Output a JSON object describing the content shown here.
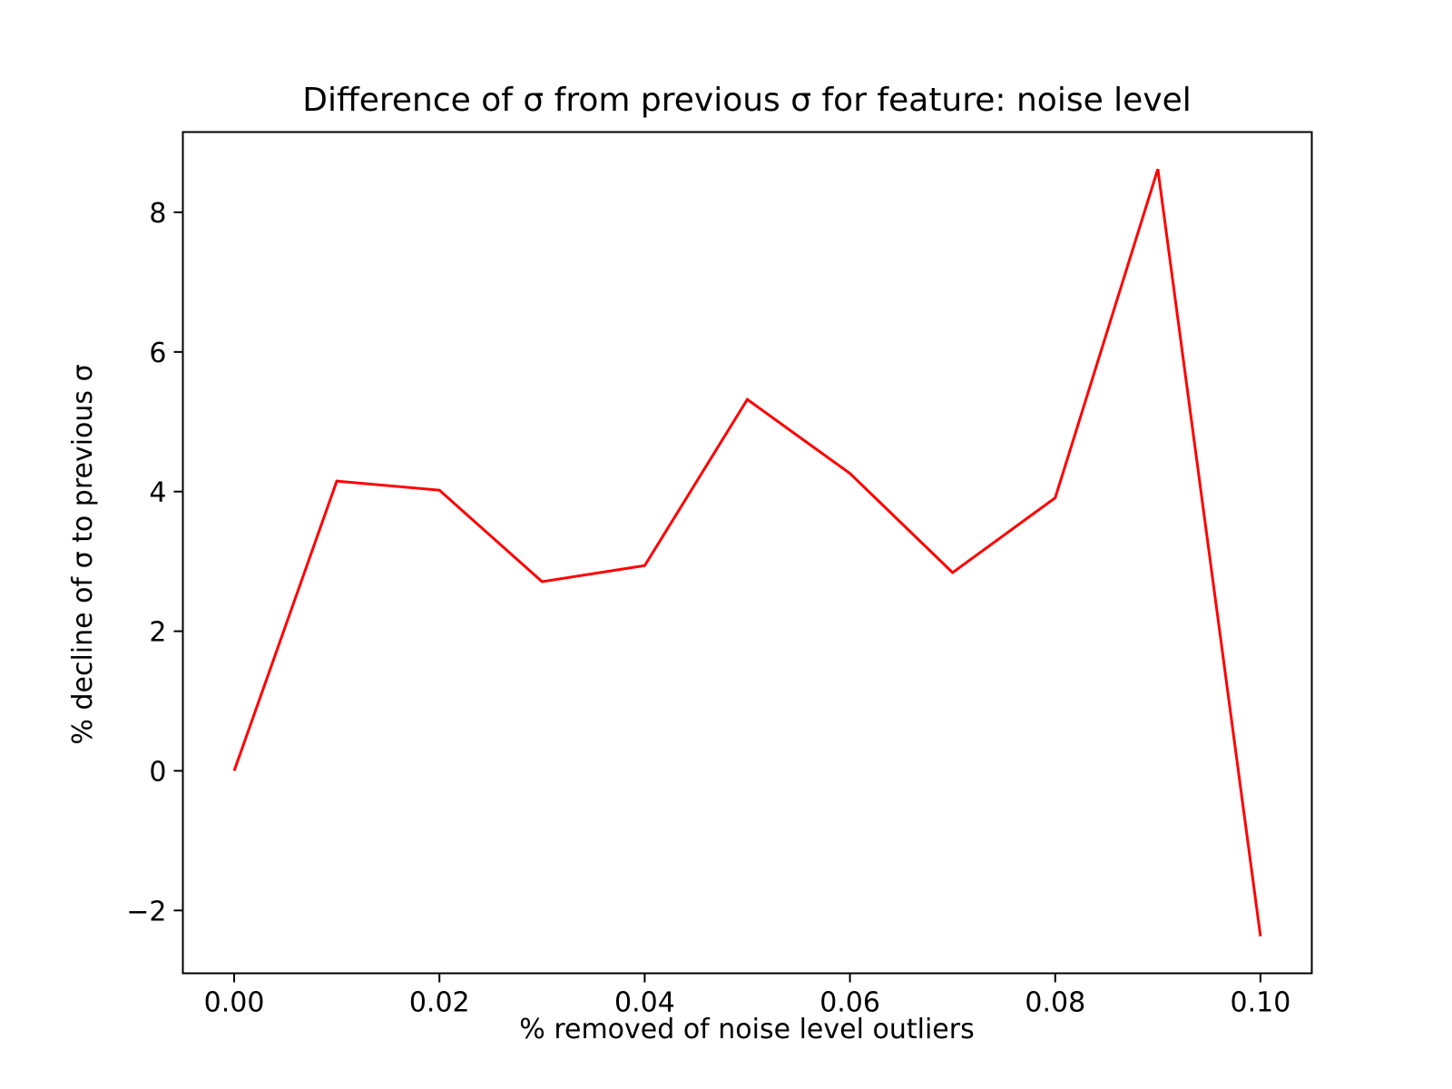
{
  "chart_data": {
    "type": "line",
    "title": "Difference of σ from previous σ for feature: noise level",
    "xlabel": "% removed of noise level outliers",
    "ylabel": "% decline of σ to previous σ",
    "xlim": [
      -0.005,
      0.105
    ],
    "ylim": [
      -2.9,
      9.15
    ],
    "x_ticks": [
      0.0,
      0.02,
      0.04,
      0.06,
      0.08,
      0.1
    ],
    "x_tick_labels": [
      "0.00",
      "0.02",
      "0.04",
      "0.06",
      "0.08",
      "0.10"
    ],
    "y_ticks": [
      -2,
      0,
      2,
      4,
      6,
      8
    ],
    "y_tick_labels": [
      "−2",
      "0",
      "2",
      "4",
      "6",
      "8"
    ],
    "grid": false,
    "legend": "none",
    "series": [
      {
        "color": "#ff0000",
        "x": [
          0.0,
          0.01,
          0.02,
          0.03,
          0.04,
          0.05,
          0.06,
          0.07,
          0.08,
          0.09,
          0.1
        ],
        "y": [
          0.0,
          4.15,
          4.02,
          2.71,
          2.94,
          5.32,
          4.26,
          2.84,
          3.91,
          8.62,
          -2.37
        ]
      }
    ]
  }
}
